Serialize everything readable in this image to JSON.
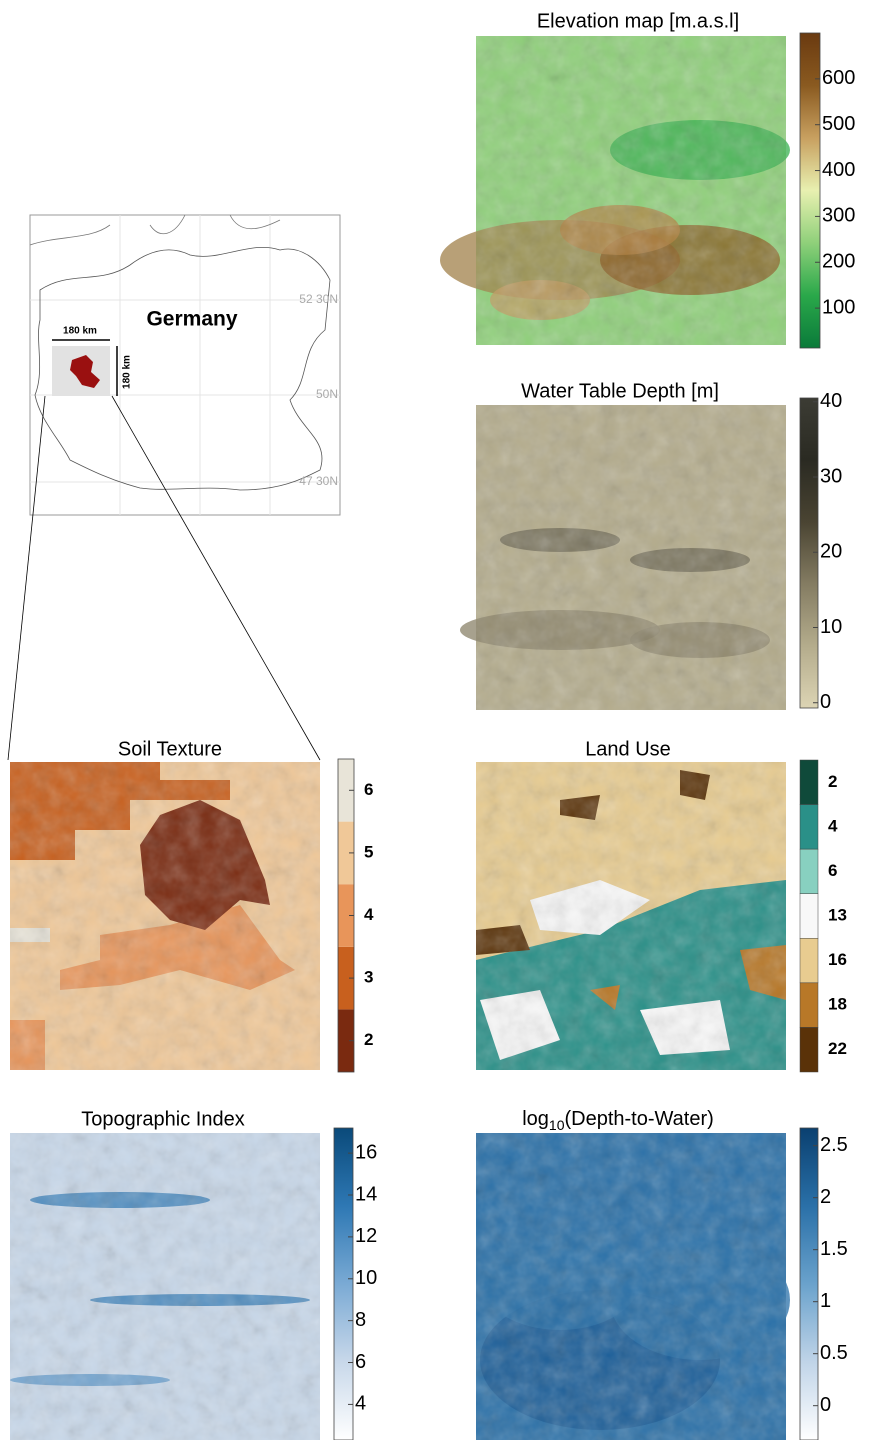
{
  "locator": {
    "country": "Germany",
    "width_label": "180 km",
    "height_label": "180 km",
    "lat_labels": [
      "52 30N",
      "50N",
      "47 30N"
    ]
  },
  "panels": [
    {
      "title": "Elevation map [m.a.s.l]",
      "colorbar": {
        "lim": [
          13,
          700
        ],
        "ticks": [
          100,
          200,
          300,
          400,
          500,
          600
        ],
        "colors": [
          "#0a7a3a",
          "#2aa84a",
          "#8fd07a",
          "#e8f0b0",
          "#c8a060",
          "#8a5a20",
          "#6a3a10"
        ]
      }
    },
    {
      "title": "Water Table Depth [m]",
      "colorbar": {
        "lim": [
          -0.7,
          40.5
        ],
        "ticks": [
          0,
          10,
          20,
          30,
          40
        ],
        "colors": [
          "#dcd4b4",
          "#b4ac8c",
          "#847c62",
          "#4a4432",
          "#2a2a22",
          "#3c3c34"
        ]
      }
    },
    {
      "title": "Soil Texture",
      "colorbar": {
        "lim": [
          1.5,
          6.5
        ],
        "ticks": [
          2,
          3,
          4,
          5,
          6
        ],
        "discrete": true,
        "colors": [
          "#7a2a10",
          "#c8601e",
          "#e8955a",
          "#f0c898",
          "#e8e4d8"
        ]
      }
    },
    {
      "title": "Land Use",
      "colorbar": {
        "categories": [
          2,
          4,
          6,
          13,
          16,
          18,
          22
        ],
        "colors": [
          "#0f4a3a",
          "#2a9088",
          "#88d0c0",
          "#f8f8f8",
          "#e8cc90",
          "#b87828",
          "#5a3208"
        ]
      }
    },
    {
      "title": "Topographic Index",
      "colorbar": {
        "lim": [
          2.3,
          17.2
        ],
        "ticks": [
          4,
          6,
          8,
          10,
          12,
          14,
          16
        ],
        "colors": [
          "#ffffff",
          "#c8d8ea",
          "#7aaad4",
          "#2e78b4",
          "#0a4a7a"
        ]
      }
    },
    {
      "title_parts": [
        "log",
        "10",
        "(Depth-to-Water)"
      ],
      "colorbar": {
        "lim": [
          -0.33,
          2.67
        ],
        "ticks": [
          0,
          0.5,
          1,
          1.5,
          2,
          2.5
        ],
        "colors": [
          "#ffffff",
          "#c0d4e8",
          "#6aa2cc",
          "#2a70a8",
          "#0a4070"
        ]
      }
    }
  ]
}
